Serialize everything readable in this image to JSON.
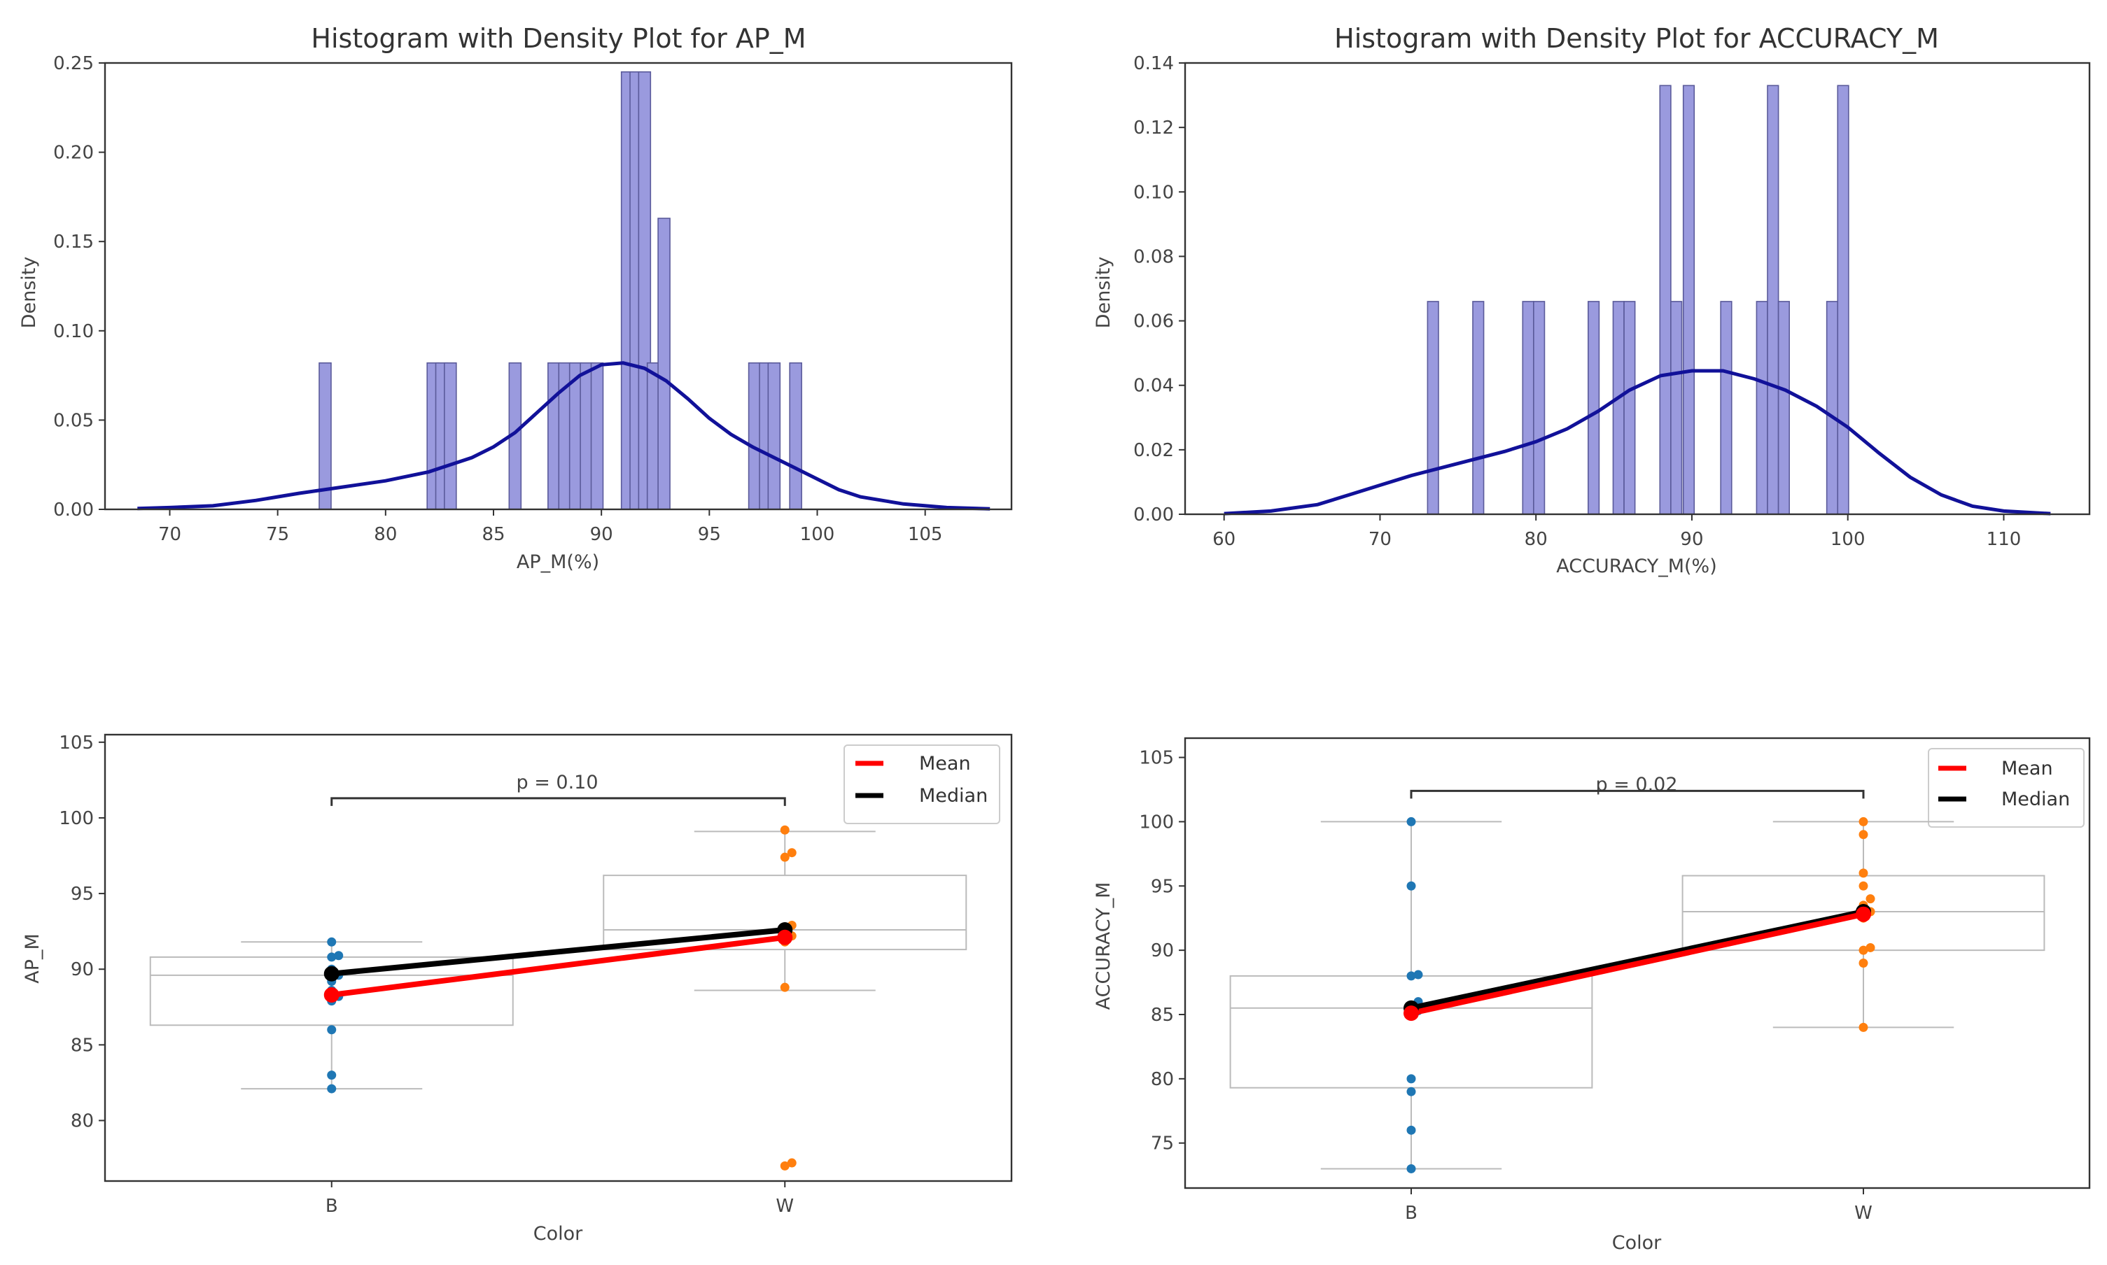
{
  "chart_data": [
    {
      "type": "bar",
      "title": "Histogram with Density Plot for AP_M",
      "xlabel": "AP_M(%)",
      "ylabel": "Density",
      "xlim": [
        67,
        109
      ],
      "ylim": [
        0,
        0.25
      ],
      "xticks": [
        70,
        75,
        80,
        85,
        90,
        95,
        100,
        105
      ],
      "yticks": [
        0.0,
        0.05,
        0.1,
        0.15,
        0.2,
        0.25
      ],
      "ytick_decimals": 2,
      "bin_width": 0.55,
      "bars": [
        {
          "x": 77.2,
          "density": 0.082
        },
        {
          "x": 82.2,
          "density": 0.082
        },
        {
          "x": 82.6,
          "density": 0.082
        },
        {
          "x": 83.0,
          "density": 0.082
        },
        {
          "x": 86.0,
          "density": 0.082
        },
        {
          "x": 87.8,
          "density": 0.082
        },
        {
          "x": 88.3,
          "density": 0.082
        },
        {
          "x": 88.8,
          "density": 0.082
        },
        {
          "x": 89.3,
          "density": 0.082
        },
        {
          "x": 89.8,
          "density": 0.082
        },
        {
          "x": 91.2,
          "density": 0.245
        },
        {
          "x": 91.6,
          "density": 0.245
        },
        {
          "x": 92.0,
          "density": 0.245
        },
        {
          "x": 92.4,
          "density": 0.082
        },
        {
          "x": 92.9,
          "density": 0.163
        },
        {
          "x": 97.1,
          "density": 0.082
        },
        {
          "x": 97.6,
          "density": 0.082
        },
        {
          "x": 98.0,
          "density": 0.082
        },
        {
          "x": 99.0,
          "density": 0.082
        }
      ],
      "density_curve": {
        "x": [
          68.5,
          70,
          72,
          74,
          76,
          78,
          80,
          82,
          84,
          85,
          86,
          87,
          88,
          89,
          90,
          91,
          92,
          93,
          94,
          95,
          96,
          97,
          98,
          99,
          100,
          101,
          102,
          104,
          106,
          108
        ],
        "y": [
          0.0005,
          0.001,
          0.002,
          0.005,
          0.009,
          0.0125,
          0.016,
          0.021,
          0.029,
          0.035,
          0.043,
          0.054,
          0.065,
          0.075,
          0.081,
          0.082,
          0.079,
          0.072,
          0.062,
          0.051,
          0.042,
          0.035,
          0.029,
          0.023,
          0.017,
          0.011,
          0.007,
          0.003,
          0.001,
          0.0003
        ]
      }
    },
    {
      "type": "bar",
      "title": "Histogram with Density Plot for ACCURACY_M",
      "xlabel": "ACCURACY_M(%)",
      "ylabel": "Density",
      "xlim": [
        57.5,
        115.5
      ],
      "ylim": [
        0,
        0.14
      ],
      "xticks": [
        60,
        70,
        80,
        90,
        100,
        110
      ],
      "yticks": [
        0.0,
        0.02,
        0.04,
        0.06,
        0.08,
        0.1,
        0.12,
        0.14
      ],
      "ytick_decimals": 2,
      "bin_width": 0.7,
      "bars": [
        {
          "x": 73.4,
          "density": 0.066
        },
        {
          "x": 76.3,
          "density": 0.066
        },
        {
          "x": 79.5,
          "density": 0.066
        },
        {
          "x": 80.2,
          "density": 0.066
        },
        {
          "x": 83.7,
          "density": 0.066
        },
        {
          "x": 85.3,
          "density": 0.066
        },
        {
          "x": 86.0,
          "density": 0.066
        },
        {
          "x": 88.3,
          "density": 0.133
        },
        {
          "x": 89.0,
          "density": 0.066
        },
        {
          "x": 89.8,
          "density": 0.133
        },
        {
          "x": 92.2,
          "density": 0.066
        },
        {
          "x": 94.5,
          "density": 0.066
        },
        {
          "x": 95.2,
          "density": 0.133
        },
        {
          "x": 95.9,
          "density": 0.066
        },
        {
          "x": 99.0,
          "density": 0.066
        },
        {
          "x": 99.7,
          "density": 0.133
        }
      ],
      "density_curve": {
        "x": [
          60,
          63,
          66,
          68,
          70,
          72,
          74,
          76,
          78,
          80,
          82,
          84,
          86,
          88,
          90,
          92,
          94,
          96,
          98,
          100,
          102,
          104,
          106,
          108,
          110,
          113
        ],
        "y": [
          0.0002,
          0.001,
          0.003,
          0.006,
          0.009,
          0.012,
          0.0145,
          0.017,
          0.0195,
          0.0225,
          0.0265,
          0.032,
          0.0385,
          0.043,
          0.0445,
          0.0445,
          0.042,
          0.0385,
          0.0335,
          0.027,
          0.019,
          0.0115,
          0.006,
          0.0025,
          0.001,
          0.0002
        ]
      }
    },
    {
      "type": "scatter",
      "xlabel": "Color",
      "ylabel": "AP_M",
      "categories": [
        "B",
        "W"
      ],
      "ylim": [
        76,
        105.5
      ],
      "yticks": [
        80,
        85,
        90,
        95,
        100,
        105
      ],
      "ytick_decimals": 0,
      "boxes": [
        {
          "category": "B",
          "q1": 86.3,
          "median": 89.6,
          "q3": 90.8,
          "whisker_low": 82.1,
          "whisker_high": 91.8
        },
        {
          "category": "W",
          "q1": 91.3,
          "median": 92.6,
          "q3": 96.2,
          "whisker_low": 88.6,
          "whisker_high": 99.1
        }
      ],
      "points": [
        {
          "category": "B",
          "values": [
            82.1,
            83.0,
            86.0,
            87.9,
            88.2,
            88.6,
            89.2,
            89.6,
            90.0,
            90.8,
            90.9,
            91.8
          ]
        },
        {
          "category": "W",
          "values": [
            77.0,
            77.2,
            88.8,
            91.8,
            92.2,
            92.6,
            92.9,
            97.4,
            97.7,
            99.2
          ]
        }
      ],
      "mean_line": {
        "B": 88.3,
        "W": 92.1
      },
      "median_line": {
        "B": 89.7,
        "W": 92.6
      },
      "significance": {
        "text": "p = 0.10",
        "y": 101.3
      },
      "legend": [
        "Mean",
        "Median"
      ],
      "legend_colors": [
        "#ff0000",
        "#000000"
      ]
    },
    {
      "type": "scatter",
      "xlabel": "Color",
      "ylabel": "ACCURACY_M",
      "categories": [
        "B",
        "W"
      ],
      "ylim": [
        71.5,
        106.5
      ],
      "yticks": [
        75,
        80,
        85,
        90,
        95,
        100,
        105
      ],
      "ytick_decimals": 0,
      "boxes": [
        {
          "category": "B",
          "q1": 79.3,
          "median": 85.5,
          "q3": 88.0,
          "whisker_low": 73.0,
          "whisker_high": 100.0
        },
        {
          "category": "W",
          "q1": 90.0,
          "median": 93.0,
          "q3": 95.8,
          "whisker_low": 84.0,
          "whisker_high": 100.0
        }
      ],
      "points": [
        {
          "category": "B",
          "values": [
            73.0,
            76.0,
            79.0,
            80.0,
            85.0,
            85.3,
            85.6,
            86.0,
            88.0,
            88.1,
            95.0,
            100.0
          ]
        },
        {
          "category": "W",
          "values": [
            84.0,
            89.0,
            90.0,
            90.2,
            92.5,
            93.0,
            93.5,
            94.0,
            95.0,
            96.0,
            99.0,
            100.0
          ]
        }
      ],
      "mean_line": {
        "B": 85.1,
        "W": 92.8
      },
      "median_line": {
        "B": 85.5,
        "W": 93.0
      },
      "significance": {
        "text": "p = 0.02",
        "y": 102.4
      },
      "legend": [
        "Mean",
        "Median"
      ],
      "legend_colors": [
        "#ff0000",
        "#000000"
      ]
    }
  ]
}
